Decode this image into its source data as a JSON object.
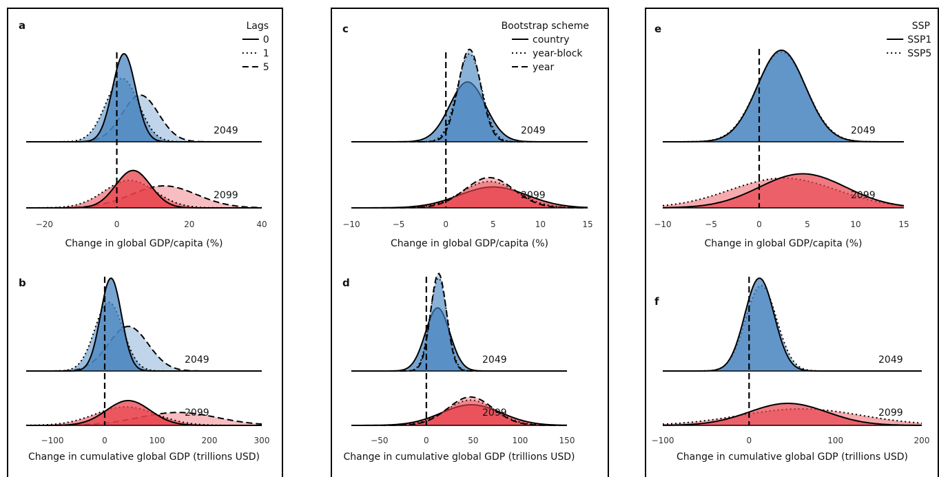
{
  "colors": {
    "blue": "#4a86c0",
    "red": "#e8424b"
  },
  "panels": [
    {
      "id": "a",
      "letter": "a",
      "xlabel": "Change in global GDP/capita (%)",
      "xlim": [
        -25,
        40
      ],
      "ticks": [
        -20,
        0,
        20,
        40
      ],
      "legend": {
        "title": "Lags",
        "entries": [
          {
            "label": "0",
            "style": "solid"
          },
          {
            "label": "1",
            "style": "dotted"
          },
          {
            "label": "5",
            "style": "dashed"
          }
        ]
      },
      "rows": [
        {
          "year": "2049",
          "color": "blue",
          "curves": [
            {
              "key": "0",
              "style": "solid",
              "mu": 2,
              "sd": 3.2,
              "h": 1.0,
              "a": 0.75
            },
            {
              "key": "1",
              "style": "dotted",
              "mu": 1.5,
              "sd": 4.5,
              "h": 0.72,
              "a": 0.55
            },
            {
              "key": "5",
              "style": "dashed",
              "mu": 6.5,
              "sd": 5.0,
              "h": 0.53,
              "a": 0.35
            }
          ]
        },
        {
          "year": "2099",
          "color": "red",
          "curves": [
            {
              "key": "0",
              "style": "solid",
              "mu": 4.5,
              "sd": 4.8,
              "h": 0.68,
              "a": 0.75
            },
            {
              "key": "1",
              "style": "dotted",
              "mu": 3.5,
              "sd": 7.0,
              "h": 0.5,
              "a": 0.55
            },
            {
              "key": "5",
              "style": "dashed",
              "mu": 13,
              "sd": 9.0,
              "h": 0.4,
              "a": 0.35
            }
          ]
        }
      ]
    },
    {
      "id": "b",
      "letter": "b",
      "xlabel": "Change in cumulative global GDP (trillions USD)",
      "xlim": [
        -150,
        300
      ],
      "ticks": [
        -100,
        0,
        100,
        200,
        300
      ],
      "rows": [
        {
          "year": "2049",
          "color": "blue",
          "curves": [
            {
              "key": "0",
              "style": "solid",
              "mu": 12,
              "sd": 20,
              "h": 1.0,
              "a": 0.75
            },
            {
              "key": "1",
              "style": "dotted",
              "mu": 8,
              "sd": 27,
              "h": 0.74,
              "a": 0.55
            },
            {
              "key": "5",
              "style": "dashed",
              "mu": 45,
              "sd": 38,
              "h": 0.48,
              "a": 0.35
            }
          ]
        },
        {
          "year": "2099",
          "color": "red",
          "curves": [
            {
              "key": "0",
              "style": "solid",
              "mu": 45,
              "sd": 42,
              "h": 0.48,
              "a": 0.75
            },
            {
              "key": "1",
              "style": "dotted",
              "mu": 40,
              "sd": 58,
              "h": 0.36,
              "a": 0.55
            },
            {
              "key": "5",
              "style": "dashed",
              "mu": 140,
              "sd": 75,
              "h": 0.25,
              "a": 0.35
            }
          ]
        }
      ]
    },
    {
      "id": "c",
      "letter": "c",
      "xlabel": "Change in global GDP/capita (%)",
      "xlim": [
        -10,
        15
      ],
      "ticks": [
        -10,
        -5,
        0,
        5,
        10,
        15
      ],
      "legend": {
        "title": "Bootstrap scheme",
        "entries": [
          {
            "label": "country",
            "style": "solid"
          },
          {
            "label": "year-block",
            "style": "dotted"
          },
          {
            "label": "year",
            "style": "dashed"
          }
        ]
      },
      "rows": [
        {
          "year": "2049",
          "color": "blue",
          "curves": [
            {
              "key": "country",
              "style": "solid",
              "mu": 2.3,
              "sd": 1.9,
              "h": 0.68,
              "a": 0.75
            },
            {
              "key": "year-block",
              "style": "dotted",
              "mu": 2.5,
              "sd": 1.3,
              "h": 1.0,
              "a": 0.45
            },
            {
              "key": "year",
              "style": "dashed",
              "mu": 2.5,
              "sd": 1.2,
              "h": 1.05,
              "a": 0.35
            }
          ]
        },
        {
          "year": "2099",
          "color": "red",
          "curves": [
            {
              "key": "country",
              "style": "solid",
              "mu": 5,
              "sd": 3.6,
              "h": 0.38,
              "a": 0.75
            },
            {
              "key": "year-block",
              "style": "dotted",
              "mu": 4.6,
              "sd": 2.9,
              "h": 0.48,
              "a": 0.45
            },
            {
              "key": "year",
              "style": "dashed",
              "mu": 4.6,
              "sd": 2.6,
              "h": 0.55,
              "a": 0.35
            }
          ]
        }
      ]
    },
    {
      "id": "d",
      "letter": "d",
      "xlabel": "Change in cumulative global GDP (trillions USD)",
      "xlim": [
        -80,
        150
      ],
      "ticks": [
        -50,
        0,
        50,
        100,
        150
      ],
      "rows": [
        {
          "year": "2049",
          "color": "blue",
          "curves": [
            {
              "key": "country",
              "style": "solid",
              "mu": 12,
              "sd": 13,
              "h": 0.68,
              "a": 0.75
            },
            {
              "key": "year-block",
              "style": "dotted",
              "mu": 13,
              "sd": 9,
              "h": 1.0,
              "a": 0.45
            },
            {
              "key": "year",
              "style": "dashed",
              "mu": 13,
              "sd": 8.5,
              "h": 1.05,
              "a": 0.35
            }
          ]
        },
        {
          "year": "2099",
          "color": "red",
          "curves": [
            {
              "key": "country",
              "style": "solid",
              "mu": 48,
              "sd": 32,
              "h": 0.4,
              "a": 0.75
            },
            {
              "key": "year-block",
              "style": "dotted",
              "mu": 47,
              "sd": 26,
              "h": 0.49,
              "a": 0.45
            },
            {
              "key": "year",
              "style": "dashed",
              "mu": 47,
              "sd": 24,
              "h": 0.55,
              "a": 0.35
            }
          ]
        }
      ]
    },
    {
      "id": "e",
      "letter": "e",
      "xlabel": "Change in global GDP/capita (%)",
      "xlim": [
        -10,
        15
      ],
      "ticks": [
        -10,
        -5,
        0,
        5,
        10,
        15
      ],
      "legend": {
        "title": "SSP",
        "entries": [
          {
            "label": "SSP1",
            "style": "solid"
          },
          {
            "label": "SSP5",
            "style": "dotted"
          }
        ]
      },
      "rows": [
        {
          "year": "2049",
          "color": "blue",
          "curves": [
            {
              "key": "SSP1",
              "style": "solid",
              "mu": 2.3,
              "sd": 2.5,
              "h": 1.0,
              "a": 0.75
            },
            {
              "key": "SSP5",
              "style": "dotted",
              "mu": 2.3,
              "sd": 2.55,
              "h": 0.98,
              "a": 0.45
            }
          ]
        },
        {
          "year": "2099",
          "color": "red",
          "curves": [
            {
              "key": "SSP1",
              "style": "solid",
              "mu": 4.5,
              "sd": 4.5,
              "h": 0.55,
              "a": 0.7
            },
            {
              "key": "SSP5",
              "style": "dotted",
              "mu": 2.5,
              "sd": 5.5,
              "h": 0.48,
              "a": 0.45
            }
          ]
        }
      ]
    },
    {
      "id": "f",
      "letter": "f",
      "xlabel": "Change in cumulative global GDP (trillions USD)",
      "xlim": [
        -100,
        200
      ],
      "ticks": [
        -100,
        0,
        100,
        200
      ],
      "rows": [
        {
          "year": "2049",
          "color": "blue",
          "curves": [
            {
              "key": "SSP1",
              "style": "solid",
              "mu": 12,
              "sd": 17,
              "h": 1.0,
              "a": 0.75
            },
            {
              "key": "SSP5",
              "style": "dotted",
              "mu": 14,
              "sd": 18,
              "h": 0.92,
              "a": 0.45
            }
          ]
        },
        {
          "year": "2099",
          "color": "red",
          "curves": [
            {
              "key": "SSP1",
              "style": "solid",
              "mu": 45,
              "sd": 45,
              "h": 0.4,
              "a": 0.7
            },
            {
              "key": "SSP5",
              "style": "dotted",
              "mu": 60,
              "sd": 70,
              "h": 0.3,
              "a": 0.45
            }
          ]
        }
      ]
    }
  ],
  "chart_data": [
    {
      "type": "area",
      "panel": "a",
      "xlabel": "Change in global GDP/capita (%)",
      "xlim": [
        -25,
        40
      ],
      "legend_title": "Lags",
      "series": [
        {
          "name": "0",
          "year": "2049",
          "peak_x": 2
        },
        {
          "name": "1",
          "year": "2049",
          "peak_x": 1.5
        },
        {
          "name": "5",
          "year": "2049",
          "peak_x": 6.5
        },
        {
          "name": "0",
          "year": "2099",
          "peak_x": 4.5
        },
        {
          "name": "1",
          "year": "2099",
          "peak_x": 3.5
        },
        {
          "name": "5",
          "year": "2099",
          "peak_x": 13
        }
      ]
    },
    {
      "type": "area",
      "panel": "b",
      "xlabel": "Change in cumulative global GDP (trillions USD)",
      "xlim": [
        -150,
        300
      ],
      "series": [
        {
          "name": "0",
          "year": "2049",
          "peak_x": 12
        },
        {
          "name": "1",
          "year": "2049",
          "peak_x": 8
        },
        {
          "name": "5",
          "year": "2049",
          "peak_x": 45
        },
        {
          "name": "0",
          "year": "2099",
          "peak_x": 45
        },
        {
          "name": "1",
          "year": "2099",
          "peak_x": 40
        },
        {
          "name": "5",
          "year": "2099",
          "peak_x": 140
        }
      ]
    },
    {
      "type": "area",
      "panel": "c",
      "xlabel": "Change in global GDP/capita (%)",
      "xlim": [
        -10,
        15
      ],
      "legend_title": "Bootstrap scheme",
      "series": [
        {
          "name": "country",
          "year": "2049",
          "peak_x": 2.3
        },
        {
          "name": "year-block",
          "year": "2049",
          "peak_x": 2.5
        },
        {
          "name": "year",
          "year": "2049",
          "peak_x": 2.5
        },
        {
          "name": "country",
          "year": "2099",
          "peak_x": 5
        },
        {
          "name": "year-block",
          "year": "2099",
          "peak_x": 4.6
        },
        {
          "name": "year",
          "year": "2099",
          "peak_x": 4.6
        }
      ]
    },
    {
      "type": "area",
      "panel": "d",
      "xlabel": "Change in cumulative global GDP (trillions USD)",
      "xlim": [
        -80,
        150
      ],
      "series": [
        {
          "name": "country",
          "year": "2049",
          "peak_x": 12
        },
        {
          "name": "year-block",
          "year": "2049",
          "peak_x": 13
        },
        {
          "name": "year",
          "year": "2049",
          "peak_x": 13
        },
        {
          "name": "country",
          "year": "2099",
          "peak_x": 48
        },
        {
          "name": "year-block",
          "year": "2099",
          "peak_x": 47
        },
        {
          "name": "year",
          "year": "2099",
          "peak_x": 47
        }
      ]
    },
    {
      "type": "area",
      "panel": "e",
      "xlabel": "Change in global GDP/capita (%)",
      "xlim": [
        -10,
        15
      ],
      "legend_title": "SSP",
      "series": [
        {
          "name": "SSP1",
          "year": "2049",
          "peak_x": 2.3
        },
        {
          "name": "SSP5",
          "year": "2049",
          "peak_x": 2.3
        },
        {
          "name": "SSP1",
          "year": "2099",
          "peak_x": 4.5
        },
        {
          "name": "SSP5",
          "year": "2099",
          "peak_x": 2.5
        }
      ]
    },
    {
      "type": "area",
      "panel": "f",
      "xlabel": "Change in cumulative global GDP (trillions USD)",
      "xlim": [
        -100,
        200
      ],
      "series": [
        {
          "name": "SSP1",
          "year": "2049",
          "peak_x": 12
        },
        {
          "name": "SSP5",
          "year": "2049",
          "peak_x": 14
        },
        {
          "name": "SSP1",
          "year": "2099",
          "peak_x": 45
        },
        {
          "name": "SSP5",
          "year": "2099",
          "peak_x": 60
        }
      ]
    }
  ]
}
